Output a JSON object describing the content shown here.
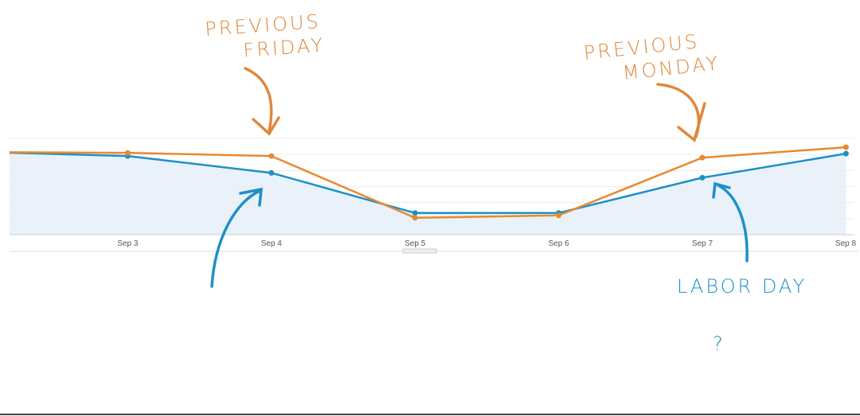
{
  "chart_data": {
    "type": "line",
    "categories": [
      null,
      "Sep 3",
      "Sep 4",
      "Sep 5",
      "Sep 6",
      "Sep 7",
      "Sep 8"
    ],
    "series": [
      {
        "color": "#1e90c8",
        "values": [
          5.15,
          4.9,
          3.85,
          1.35,
          1.35,
          3.55,
          5.05
        ],
        "area": true
      },
      {
        "color": "#e8892e",
        "values": [
          5.15,
          5.1,
          4.9,
          1.05,
          1.2,
          4.8,
          5.45
        ]
      }
    ],
    "ylim": [
      0,
      6
    ],
    "yticks": [
      0,
      1,
      2,
      3,
      4,
      5,
      6
    ],
    "grid": true,
    "annotations": [
      {
        "lines": [
          "PREVIOUS",
          "FRIDAY"
        ],
        "color": "#e0883a"
      },
      {
        "lines": [
          "PREVIOUS",
          "MONDAY"
        ],
        "color": "#e0883a"
      },
      {
        "lines": [
          "LABOR DAY"
        ],
        "color": "#1e90c8"
      },
      {
        "lines": [
          "?"
        ],
        "color": "#1e8aa8"
      }
    ]
  }
}
